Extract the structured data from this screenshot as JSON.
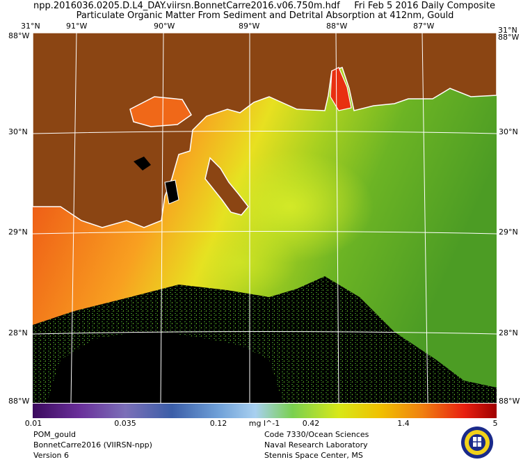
{
  "header": {
    "filename": "npp.2016036.0205.D.L4_DAY.viirsn.BonnetCarre2016.v06.750m.hdf",
    "date": "Fri Feb  5 2016 Daily Composite",
    "product": "Particulate Organic Matter From Sediment and Detrital Absorption at 412nm, Gould"
  },
  "map": {
    "top_lon_labels": [
      "91°W",
      "90°W",
      "89°W",
      "88°W",
      "87°W"
    ],
    "lat_labels": [
      "30°N",
      "29°N",
      "28°N"
    ],
    "corner_top_left": "31°N",
    "corner_top_right": "31°N",
    "corner_left_edge": "88°W",
    "corner_right_edge": "88°W",
    "corner_bottom_left": "88°W",
    "corner_bottom_right": "88°W",
    "land_color": "#8b4513",
    "coast_color": "#ffffff",
    "grid_color": "#ffffff",
    "nodata_color": "#000000"
  },
  "colorbar": {
    "ticks": [
      "0.01",
      "0.035",
      "0.12",
      "0.42",
      "1.4",
      "5"
    ],
    "units": "mg l^-1",
    "scale": "log",
    "range": [
      0.01,
      5
    ],
    "colors": [
      "#3b0a5e",
      "#6a2f9a",
      "#7b6fb8",
      "#3b5ea8",
      "#6fa0d8",
      "#a8d0f0",
      "#7ad050",
      "#d8e818",
      "#f0c000",
      "#f08010",
      "#e82010",
      "#a00000"
    ]
  },
  "footer": {
    "left": [
      "POM_gould",
      "BonnetCarre2016 (VIIRSN-npp)",
      "Version 6"
    ],
    "right": [
      "Code 7330/Ocean Sciences",
      "Naval Research Laboratory",
      "Stennis Space Center, MS"
    ]
  },
  "logo": {
    "icon": "navy-seal-icon",
    "ring_color": "#1a2a8a",
    "fill_color": "#f2d21a"
  }
}
